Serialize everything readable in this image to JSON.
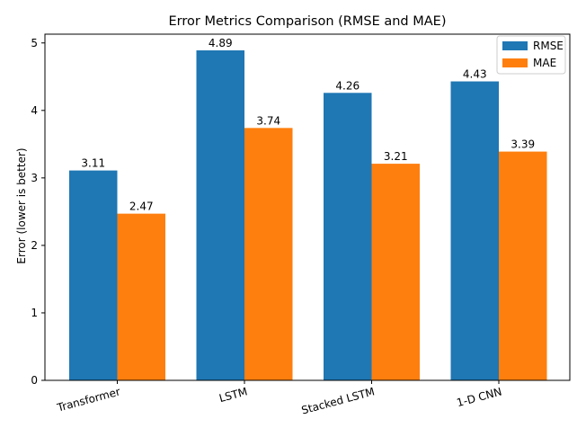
{
  "chart_data": {
    "type": "bar",
    "title": "Error Metrics Comparison (RMSE and MAE)",
    "xlabel": "",
    "ylabel": "Error (lower is better)",
    "categories": [
      "Transformer",
      "LSTM",
      "Stacked LSTM",
      "1-D CNN"
    ],
    "series": [
      {
        "name": "RMSE",
        "color": "#1f77b4",
        "values": [
          3.11,
          4.89,
          4.26,
          4.43
        ],
        "labels": [
          "3.11",
          "4.89",
          "4.26",
          "4.43"
        ]
      },
      {
        "name": "MAE",
        "color": "#ff7f0e",
        "values": [
          2.47,
          3.74,
          3.21,
          3.39
        ],
        "labels": [
          "2.47",
          "3.74",
          "3.21",
          "3.39"
        ]
      }
    ],
    "ylim": [
      0,
      5.13
    ],
    "yticks": [
      0,
      1,
      2,
      3,
      4,
      5
    ],
    "ytick_labels": [
      "0",
      "1",
      "2",
      "3",
      "4",
      "5"
    ],
    "xtick_rotation": "rotated",
    "grid": false,
    "legend_position": "top-right"
  }
}
